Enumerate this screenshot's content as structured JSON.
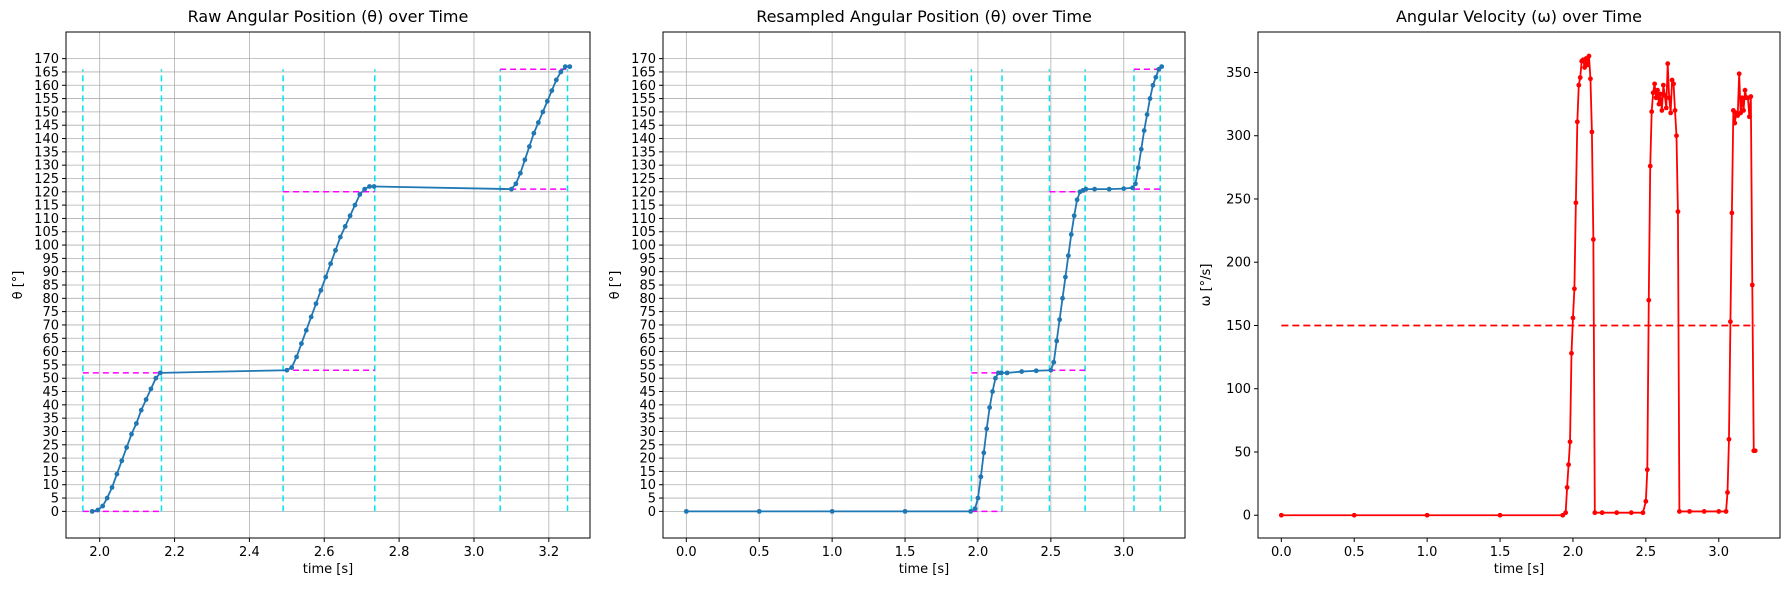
{
  "chart_data": [
    {
      "type": "line",
      "title": "Raw Angular Position (θ) over Time",
      "xlabel": "time [s]",
      "ylabel": "θ [°]",
      "xlim": [
        1.91,
        3.31
      ],
      "ylim": [
        -10,
        180
      ],
      "xticks": [
        2.0,
        2.2,
        2.4,
        2.6,
        2.8,
        3.0,
        3.2
      ],
      "yticks": [
        0,
        5,
        10,
        15,
        20,
        25,
        30,
        35,
        40,
        45,
        50,
        55,
        60,
        65,
        70,
        75,
        80,
        85,
        90,
        95,
        100,
        105,
        110,
        115,
        120,
        125,
        130,
        135,
        140,
        145,
        150,
        155,
        160,
        165,
        170
      ],
      "grid": true,
      "series": [
        {
          "color": "#1f77b4",
          "marker": "dot",
          "x": [
            1.98,
            1.995,
            2.008,
            2.02,
            2.033,
            2.046,
            2.059,
            2.072,
            2.085,
            2.098,
            2.111,
            2.124,
            2.137,
            2.15,
            2.162,
            2.5,
            2.513,
            2.526,
            2.539,
            2.552,
            2.565,
            2.578,
            2.591,
            2.604,
            2.617,
            2.63,
            2.643,
            2.656,
            2.669,
            2.682,
            2.695,
            2.708,
            2.721,
            2.733,
            3.1,
            3.112,
            3.124,
            3.136,
            3.148,
            3.16,
            3.172,
            3.184,
            3.196,
            3.208,
            3.22,
            3.232,
            3.244,
            3.256
          ],
          "y": [
            0,
            0.5,
            2,
            5,
            9,
            14,
            19,
            24,
            29,
            33,
            38,
            42,
            46,
            50,
            52,
            53,
            54,
            58,
            63,
            68,
            73,
            78,
            83,
            88,
            93,
            98,
            103,
            107,
            111,
            115,
            119,
            121,
            122,
            122,
            121,
            123,
            127,
            132,
            137,
            142,
            146,
            150,
            154,
            158,
            162,
            165,
            167,
            167
          ]
        }
      ],
      "hlines": [
        {
          "y": 0,
          "x": [
            1.955,
            2.165
          ],
          "color": "#ff00ff",
          "style": "dashed"
        },
        {
          "y": 52,
          "x": [
            1.955,
            2.165
          ],
          "color": "#ff00ff",
          "style": "dashed"
        },
        {
          "y": 53,
          "x": [
            2.49,
            2.735
          ],
          "color": "#ff00ff",
          "style": "dashed"
        },
        {
          "y": 120,
          "x": [
            2.49,
            2.735
          ],
          "color": "#ff00ff",
          "style": "dashed"
        },
        {
          "y": 121,
          "x": [
            3.07,
            3.25
          ],
          "color": "#ff00ff",
          "style": "dashed"
        },
        {
          "y": 166,
          "x": [
            3.07,
            3.25
          ],
          "color": "#ff00ff",
          "style": "dashed"
        }
      ],
      "vlines": [
        {
          "x": 1.955,
          "y": [
            0,
            166
          ],
          "color": "#00e5ee",
          "style": "dashed"
        },
        {
          "x": 2.165,
          "y": [
            0,
            166
          ],
          "color": "#00e5ee",
          "style": "dashed"
        },
        {
          "x": 2.49,
          "y": [
            0,
            166
          ],
          "color": "#00e5ee",
          "style": "dashed"
        },
        {
          "x": 2.735,
          "y": [
            0,
            166
          ],
          "color": "#00e5ee",
          "style": "dashed"
        },
        {
          "x": 3.07,
          "y": [
            0,
            166
          ],
          "color": "#00e5ee",
          "style": "dashed"
        },
        {
          "x": 3.25,
          "y": [
            0,
            166
          ],
          "color": "#00e5ee",
          "style": "dashed"
        }
      ]
    },
    {
      "type": "line",
      "title": "Resampled Angular Position (θ) over Time",
      "xlabel": "time [s]",
      "ylabel": "θ [°]",
      "xlim": [
        -0.16,
        3.42
      ],
      "ylim": [
        -10,
        180
      ],
      "xticks": [
        0.0,
        0.5,
        1.0,
        1.5,
        2.0,
        2.5,
        3.0
      ],
      "yticks": [
        0,
        5,
        10,
        15,
        20,
        25,
        30,
        35,
        40,
        45,
        50,
        55,
        60,
        65,
        70,
        75,
        80,
        85,
        90,
        95,
        100,
        105,
        110,
        115,
        120,
        125,
        130,
        135,
        140,
        145,
        150,
        155,
        160,
        165,
        170
      ],
      "grid": true,
      "series": [
        {
          "color": "#1f77b4",
          "marker": "dot",
          "x": [
            0.0,
            0.5,
            1.0,
            1.5,
            1.95,
            1.98,
            2.0,
            2.02,
            2.04,
            2.06,
            2.08,
            2.1,
            2.12,
            2.14,
            2.16,
            2.2,
            2.3,
            2.4,
            2.5,
            2.52,
            2.54,
            2.56,
            2.58,
            2.6,
            2.62,
            2.64,
            2.66,
            2.68,
            2.7,
            2.72,
            2.74,
            2.8,
            2.9,
            3.0,
            3.06,
            3.08,
            3.1,
            3.12,
            3.14,
            3.16,
            3.18,
            3.2,
            3.22,
            3.24,
            3.26
          ],
          "y": [
            0,
            0,
            0,
            0,
            0,
            1,
            5,
            13,
            22,
            31,
            39,
            45,
            50,
            52,
            52,
            52,
            52.5,
            52.8,
            53,
            56,
            64,
            72,
            80,
            88,
            96,
            104,
            111,
            117,
            120,
            120.5,
            121,
            121,
            121,
            121.2,
            121.5,
            123,
            129,
            136,
            143,
            149,
            155,
            160,
            163,
            166,
            167
          ]
        }
      ],
      "hlines": [
        {
          "y": 0,
          "x": [
            1.955,
            2.165
          ],
          "color": "#ff00ff",
          "style": "dashed"
        },
        {
          "y": 52,
          "x": [
            1.955,
            2.165
          ],
          "color": "#ff00ff",
          "style": "dashed"
        },
        {
          "y": 53,
          "x": [
            2.49,
            2.735
          ],
          "color": "#ff00ff",
          "style": "dashed"
        },
        {
          "y": 120,
          "x": [
            2.49,
            2.735
          ],
          "color": "#ff00ff",
          "style": "dashed"
        },
        {
          "y": 121,
          "x": [
            3.07,
            3.25
          ],
          "color": "#ff00ff",
          "style": "dashed"
        },
        {
          "y": 166,
          "x": [
            3.07,
            3.25
          ],
          "color": "#ff00ff",
          "style": "dashed"
        }
      ],
      "vlines": [
        {
          "x": 1.955,
          "y": [
            0,
            166
          ],
          "color": "#00e5ee",
          "style": "dashed"
        },
        {
          "x": 2.165,
          "y": [
            0,
            166
          ],
          "color": "#00e5ee",
          "style": "dashed"
        },
        {
          "x": 2.49,
          "y": [
            0,
            166
          ],
          "color": "#00e5ee",
          "style": "dashed"
        },
        {
          "x": 2.735,
          "y": [
            0,
            166
          ],
          "color": "#00e5ee",
          "style": "dashed"
        },
        {
          "x": 3.07,
          "y": [
            0,
            166
          ],
          "color": "#00e5ee",
          "style": "dashed"
        },
        {
          "x": 3.25,
          "y": [
            0,
            166
          ],
          "color": "#00e5ee",
          "style": "dashed"
        }
      ]
    },
    {
      "type": "line",
      "title": "Angular Velocity (ω) over Time",
      "xlabel": "time [s]",
      "ylabel": "ω [°/s]",
      "xlim": [
        -0.16,
        3.42
      ],
      "ylim": [
        -18,
        382
      ],
      "xticks": [
        0.0,
        0.5,
        1.0,
        1.5,
        2.0,
        2.5,
        3.0
      ],
      "yticks": [
        0,
        50,
        100,
        150,
        200,
        250,
        300,
        350
      ],
      "grid": false,
      "series": [
        {
          "color": "#ff0000",
          "marker": "dot",
          "x": [
            0.0,
            0.5,
            1.0,
            1.5,
            1.93,
            1.95,
            1.96,
            1.97,
            1.98,
            1.99,
            2.0,
            2.01,
            2.02,
            2.03,
            2.04,
            2.05,
            2.06,
            2.07,
            2.08,
            2.09,
            2.1,
            2.11,
            2.12,
            2.13,
            2.14,
            2.15,
            2.2,
            2.3,
            2.4,
            2.48,
            2.5,
            2.51,
            2.52,
            2.53,
            2.54,
            2.55,
            2.56,
            2.57,
            2.58,
            2.59,
            2.6,
            2.61,
            2.62,
            2.63,
            2.64,
            2.65,
            2.66,
            2.67,
            2.68,
            2.69,
            2.7,
            2.71,
            2.72,
            2.73,
            2.8,
            2.9,
            3.0,
            3.05,
            3.06,
            3.07,
            3.08,
            3.09,
            3.1,
            3.11,
            3.12,
            3.13,
            3.14,
            3.15,
            3.16,
            3.17,
            3.18,
            3.19,
            3.2,
            3.21,
            3.22,
            3.23,
            3.24,
            3.25
          ],
          "y": [
            0,
            0,
            0,
            0,
            0,
            2,
            22,
            40,
            58,
            128,
            156,
            179,
            247,
            311,
            340,
            346,
            359,
            360,
            354,
            361,
            356,
            363,
            345,
            303,
            218,
            2,
            2,
            2,
            2,
            2,
            11,
            36,
            170,
            276,
            319,
            334,
            341,
            330,
            336,
            325,
            333,
            320,
            340,
            332,
            322,
            357,
            330,
            318,
            344,
            341,
            320,
            300,
            240,
            3,
            3,
            3,
            3,
            3,
            18,
            60,
            153,
            239,
            320,
            310,
            318,
            316,
            349,
            318,
            330,
            320,
            336,
            330,
            330,
            315,
            331,
            182,
            51,
            51
          ]
        },
        {
          "name": "",
          "color": "#ff0000",
          "style": "dashed",
          "x": [
            0.0,
            3.25
          ],
          "y": [
            150,
            150
          ]
        }
      ]
    }
  ]
}
